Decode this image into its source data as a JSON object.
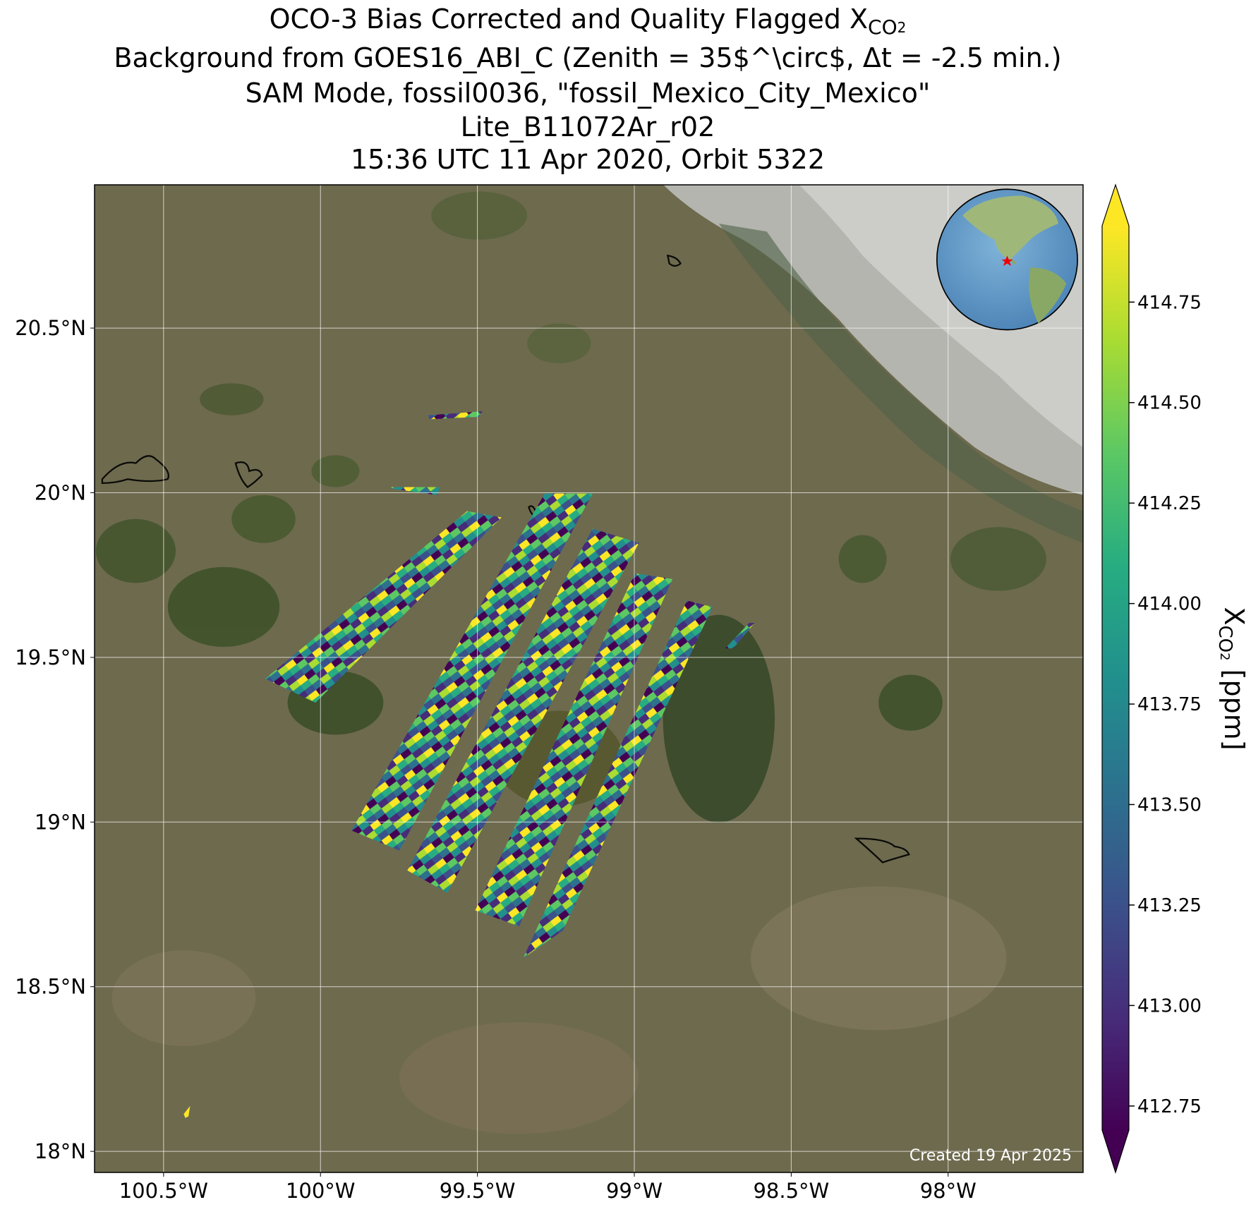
{
  "chart_data": {
    "type": "map",
    "title": {
      "text": "OCO-3 Bias Corrected and Quality Flagged X",
      "subscript": "CO",
      "subsubscript": "2"
    },
    "subtitles": [
      "Background from GOES16_ABI_C (Zenith = 35$^\\circ$, Δt = -2.5 min.)",
      "SAM Mode, fossil0036, \"fossil_Mexico_City_Mexico\"",
      "Lite_B11072Ar_r02",
      "15:36 UTC 11 Apr 2020, Orbit 5322"
    ],
    "xlim": [
      -100.72,
      -97.57
    ],
    "ylim": [
      17.936,
      20.935
    ],
    "xticks": [
      {
        "value": -100.5,
        "label": "100.5°W"
      },
      {
        "value": -100,
        "label": "100°W"
      },
      {
        "value": -99.5,
        "label": "99.5°W"
      },
      {
        "value": -99,
        "label": "99°W"
      },
      {
        "value": -98.5,
        "label": "98.5°W"
      },
      {
        "value": -98,
        "label": "98°W"
      }
    ],
    "yticks": [
      {
        "value": 18,
        "label": "18°N"
      },
      {
        "value": 18.5,
        "label": "18.5°N"
      },
      {
        "value": 19,
        "label": "19°N"
      },
      {
        "value": 19.5,
        "label": "19.5°N"
      },
      {
        "value": 20,
        "label": "20°N"
      },
      {
        "value": 20.5,
        "label": "20.5°N"
      }
    ],
    "grid": true,
    "colorbar": {
      "label": {
        "text": "X",
        "subscript": "CO",
        "subsubscript": "2",
        "unit": " [ppm]"
      },
      "clim": [
        412.69,
        414.94
      ],
      "ticks": [
        {
          "value": 412.75,
          "label": "412.75"
        },
        {
          "value": 413,
          "label": "413.00"
        },
        {
          "value": 413.25,
          "label": "413.25"
        },
        {
          "value": 413.5,
          "label": "413.50"
        },
        {
          "value": 413.75,
          "label": "413.75"
        },
        {
          "value": 414,
          "label": "414.00"
        },
        {
          "value": 414.25,
          "label": "414.25"
        },
        {
          "value": 414.5,
          "label": "414.50"
        },
        {
          "value": 414.75,
          "label": "414.75"
        }
      ],
      "colormap": [
        "#440154",
        "#472c7a",
        "#3b518b",
        "#2c718e",
        "#21908d",
        "#27ad81",
        "#5cc863",
        "#aadc32",
        "#fde725"
      ]
    },
    "footnote": "Created 19 Apr 2025"
  }
}
